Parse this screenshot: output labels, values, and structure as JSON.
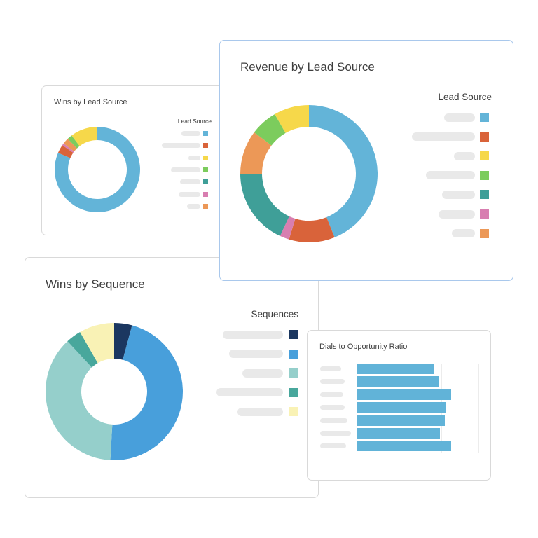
{
  "cards": {
    "wins_by_lead_source": {
      "title": "Wins by Lead Source",
      "legend_title": "Lead Source"
    },
    "revenue_by_lead_source": {
      "title": "Revenue by Lead Source",
      "legend_title": "Lead Source"
    },
    "wins_by_sequence": {
      "title": "Wins by Sequence",
      "legend_title": "Sequences"
    },
    "dials_to_opportunity_ratio": {
      "title": "Dials to Opportunity Ratio"
    }
  },
  "colors": {
    "lead_blue": "#63b4d8",
    "lead_red": "#d9633a",
    "lead_yellow": "#f6d84a",
    "lead_green": "#7ccc5d",
    "lead_teal": "#3f9f98",
    "lead_pink": "#d87eb0",
    "lead_orange": "#ec9857",
    "seq_navy": "#1b3760",
    "seq_blue": "#489fdb",
    "seq_lightteal": "#95cfcb",
    "seq_teal": "#48a79c",
    "seq_cream": "#f9f2b5",
    "bar_blue": "#61b3d8",
    "card_border": "#d9d9d9",
    "card_border_active": "#a9c8ec"
  },
  "chart_data": [
    {
      "type": "pie",
      "title": "Wins by Lead Source",
      "legend_title": "Lead Source",
      "legend_position": "right",
      "categories": [
        "(label hidden) blue",
        "(label hidden) red",
        "(label hidden) yellow",
        "(label hidden) green",
        "(label hidden) teal",
        "(label hidden) pink",
        "(label hidden) orange"
      ],
      "colors": [
        "#63b4d8",
        "#d9633a",
        "#f6d84a",
        "#7ccc5d",
        "#3f9f98",
        "#d87eb0",
        "#ec9857"
      ],
      "values_pct": [
        81.4,
        3.3,
        10.3,
        1.9,
        0,
        0.8,
        2.3
      ],
      "donut": true
    },
    {
      "type": "pie",
      "title": "Revenue by Lead Source",
      "legend_title": "Lead Source",
      "legend_position": "right",
      "categories": [
        "(label hidden) blue",
        "(label hidden) red",
        "(label hidden) yellow",
        "(label hidden) green",
        "(label hidden) teal",
        "(label hidden) pink",
        "(label hidden) orange"
      ],
      "colors": [
        "#63b4d8",
        "#d9633a",
        "#f6d84a",
        "#7ccc5d",
        "#3f9f98",
        "#d87eb0",
        "#ec9857"
      ],
      "values_pct": [
        43.9,
        10.8,
        8.3,
        6.4,
        18.1,
        2.2,
        10.3
      ],
      "donut": true
    },
    {
      "type": "pie",
      "title": "Wins by Sequence",
      "legend_title": "Sequences",
      "legend_position": "right",
      "categories": [
        "(label hidden) navy",
        "(label hidden) blue",
        "(label hidden) light teal",
        "(label hidden) teal",
        "(label hidden) cream"
      ],
      "colors": [
        "#1b3760",
        "#489fdb",
        "#95cfcb",
        "#48a79c",
        "#f9f2b5"
      ],
      "values_pct": [
        4.2,
        46.7,
        37.2,
        3.6,
        8.3
      ],
      "donut": true
    },
    {
      "type": "bar",
      "orientation": "horizontal",
      "title": "Dials to Opportunity Ratio",
      "categories": [
        "(label hidden) 1",
        "(label hidden) 2",
        "(label hidden) 3",
        "(label hidden) 4",
        "(label hidden) 5",
        "(label hidden) 6",
        "(label hidden) 7"
      ],
      "values": [
        111,
        117,
        135,
        128,
        126,
        119,
        135
      ],
      "xlim": [
        0,
        174
      ],
      "grid": true,
      "note": "values are relative bar lengths in px; axis labels not shown"
    }
  ]
}
